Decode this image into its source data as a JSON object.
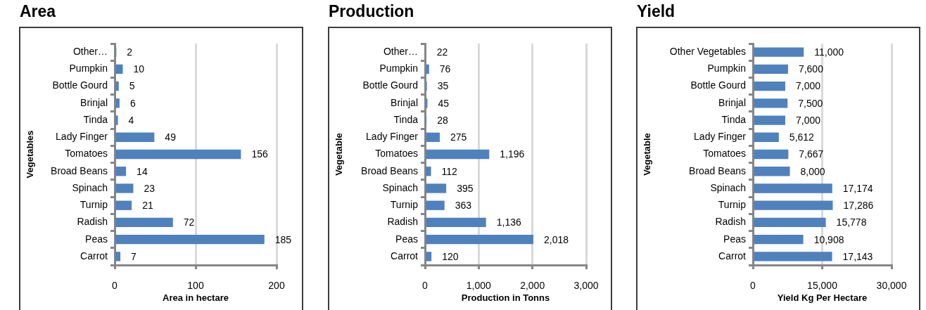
{
  "chart_data": [
    {
      "type": "bar",
      "title": "Area",
      "orientation": "horizontal",
      "categories": [
        "Other…",
        "Pumpkin",
        "Bottle Gourd",
        "Brinjal",
        "Tinda",
        "Lady Finger",
        "Tomatoes",
        "Broad Beans",
        "Spinach",
        "Turnip",
        "Radish",
        "Peas",
        "Carrot"
      ],
      "values": [
        2,
        10,
        5,
        6,
        4,
        49,
        156,
        14,
        23,
        21,
        72,
        185,
        7
      ],
      "color": "#4f81bd",
      "xlim": [
        0,
        200
      ],
      "xticks": [
        0,
        100,
        200
      ],
      "xlabel": "Area in hectare",
      "ylabel": "Vegetables",
      "grid": "x",
      "data_labels": true
    },
    {
      "type": "bar",
      "title": "Production",
      "orientation": "horizontal",
      "categories": [
        "Other…",
        "Pumpkin",
        "Bottle Gourd",
        "Brinjal",
        "Tinda",
        "Lady Finger",
        "Tomatoes",
        "Broad Beans",
        "Spinach",
        "Turnip",
        "Radish",
        "Peas",
        "Carrot"
      ],
      "values": [
        22,
        76,
        35,
        45,
        28,
        275,
        1196,
        112,
        395,
        363,
        1136,
        2018,
        120
      ],
      "value_labels": [
        "22",
        "76",
        "35",
        "45",
        "28",
        "275",
        "1,196",
        "112",
        "395",
        "363",
        "1,136",
        "2,018",
        "120"
      ],
      "color": "#4f81bd",
      "xlim": [
        0,
        3000
      ],
      "xticks": [
        0,
        {
          "value": 1000,
          "label": "1,000"
        },
        {
          "value": 2000,
          "label": "2,000"
        },
        {
          "value": 3000,
          "label": "3,000"
        }
      ],
      "xlabel": "Production in Tonns",
      "ylabel": "Vegetable",
      "grid": "x"
    },
    {
      "type": "bar",
      "title": "Yield",
      "orientation": "horizontal",
      "categories": [
        "Other Vegetables",
        "Pumpkin",
        "Bottle Gourd",
        "Brinjal",
        "Tinda",
        "Lady Finger",
        "Tomatoes",
        "Broad Beans",
        "Spinach",
        "Turnip",
        "Radish",
        "Peas",
        "Carrot"
      ],
      "values": [
        11000,
        7600,
        7000,
        7500,
        7000,
        5612,
        7667,
        8000,
        17174,
        17286,
        15778,
        10908,
        17143
      ],
      "value_labels": [
        "11,000",
        "7,600",
        "7,000",
        "7,500",
        "7,000",
        "5,612",
        "7,667",
        "8,000",
        "17,174",
        "17,286",
        "15,778",
        "10,908",
        "17,143"
      ],
      "color": "#4f81bd",
      "xlim": [
        0,
        30000
      ],
      "xticks": [
        0,
        {
          "value": 15000,
          "label": "15,000"
        },
        {
          "value": 30000,
          "label": "30,000"
        }
      ],
      "xlabel": "Yield Kg Per Hectare",
      "ylabel": "Vegetable",
      "grid": "x"
    }
  ]
}
